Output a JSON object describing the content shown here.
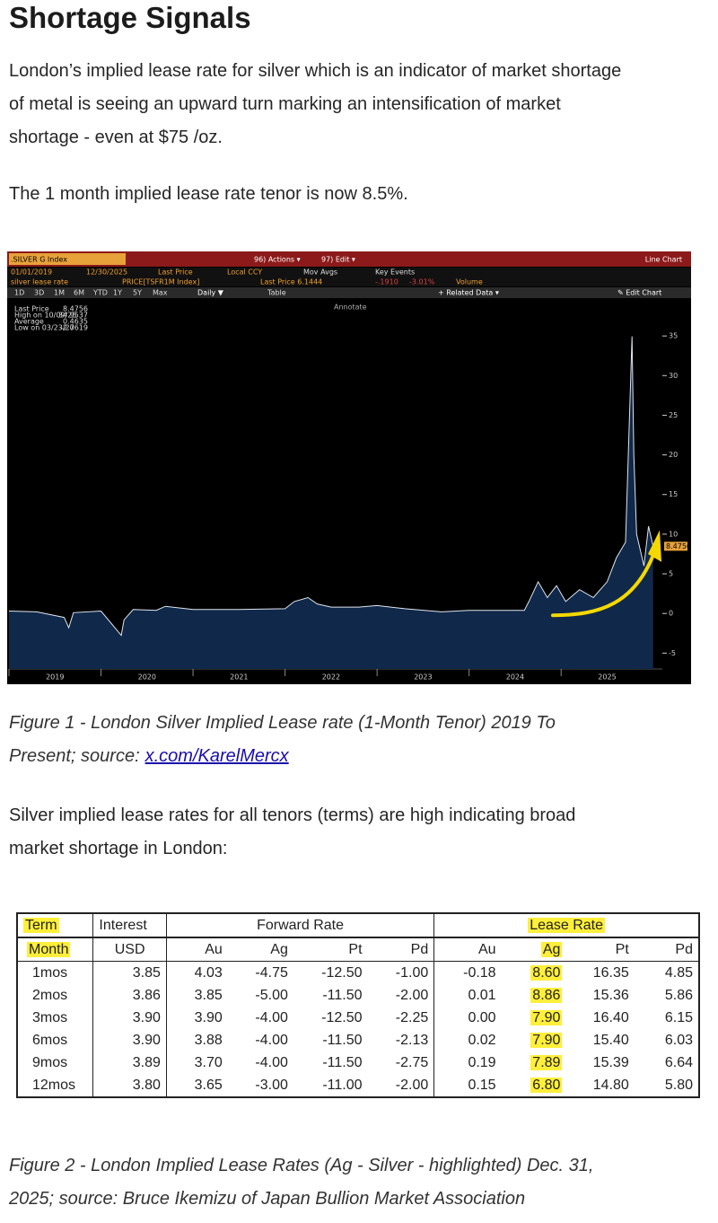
{
  "header": {
    "title": "Shortage Signals"
  },
  "paragraphs": [
    [
      "London’s implied lease rate for silver which is an indicator of market shortage",
      "of metal is seeing an upward turn marking an intensification of market",
      "shortage - even at $75 /oz."
    ],
    [
      "The 1 month implied lease rate tenor is now 8.5%."
    ]
  ],
  "figure1": {
    "chart_data": {
      "type": "line",
      "toolbar": {
        "ticker": ".SILVER G Index",
        "actions": "96) Actions ▾",
        "edit": "97) Edit ▾",
        "chart_kind": "Line Chart",
        "start_date": "01/01/2019",
        "end_date": "12/30/2025",
        "field": "Last Price",
        "currency": "Local CCY",
        "mov_avgs": "Mov Avgs",
        "key_events": "Key Events",
        "series_name": "silver lease rate",
        "formula": "PRICE[TSFR1M Index]",
        "last_price": "Last Price 6.1444",
        "change": "-.1910",
        "change_pct": "-3.01%",
        "volume": "Volume",
        "periods": [
          "1D",
          "3D",
          "1M",
          "6M",
          "YTD",
          "1Y",
          "5Y",
          "Max"
        ],
        "frequency": "Daily ▼",
        "table": "Table",
        "related": "+ Related Data ▾",
        "edit_chart": "✎ Edit Chart",
        "annotate": "Annotate"
      },
      "legend_rows": [
        [
          "Last Price",
          "8.4756"
        ],
        [
          "High on 10/09/25",
          "34.9537"
        ],
        [
          "Average",
          "0.4635"
        ],
        [
          "Low on 03/23/20",
          "-2.7619"
        ]
      ],
      "price_tag": "8.4756",
      "x": [
        2019.0,
        2019.3,
        2019.6,
        2019.65,
        2019.7,
        2020.0,
        2020.22,
        2020.25,
        2020.35,
        2020.6,
        2020.7,
        2021.0,
        2021.5,
        2022.0,
        2022.1,
        2022.25,
        2022.35,
        2022.5,
        2022.8,
        2023.0,
        2023.3,
        2023.7,
        2024.0,
        2024.4,
        2024.6,
        2024.65,
        2024.75,
        2024.85,
        2024.95,
        2025.05,
        2025.2,
        2025.35,
        2025.5,
        2025.6,
        2025.7,
        2025.77,
        2025.79,
        2025.82,
        2025.9,
        2025.95,
        2026.0
      ],
      "series": [
        {
          "color": "#dfe6ee",
          "values": [
            0.3,
            0.2,
            -0.5,
            -1.8,
            0.1,
            0.3,
            -2.7619,
            -0.8,
            0.5,
            0.4,
            0.9,
            0.5,
            0.5,
            0.6,
            1.5,
            2.0,
            1.2,
            0.8,
            0.8,
            1.0,
            0.6,
            0.2,
            0.4,
            0.4,
            0.4,
            1.5,
            4.0,
            2.0,
            3.5,
            1.5,
            3.0,
            2.0,
            4.0,
            7.0,
            9.0,
            34.9537,
            20.0,
            10.0,
            6.0,
            11.0,
            8.4756
          ]
        }
      ],
      "xlim": [
        2019,
        2026.1
      ],
      "ylim": [
        -7,
        40
      ],
      "xticks": [
        2019,
        2020,
        2021,
        2022,
        2023,
        2024,
        2025
      ],
      "yticks": [
        -5,
        0,
        5,
        10,
        15,
        20,
        25,
        30,
        35
      ]
    },
    "caption": [
      "Figure 1 - London Silver Implied Lease rate (1-Month Tenor) 2019 To",
      "Present; source:"
    ],
    "caption_link": "x.com/KarelMercx"
  },
  "paragraph3": [
    "Silver implied lease rates for all tenors (terms) are high indicating broad",
    "market shortage in London:"
  ],
  "table": {
    "group_header": [
      "Term",
      "Interest",
      "Forward Rate",
      "Lease Rate"
    ],
    "header": [
      "Month",
      "USD",
      "Au",
      "Ag",
      "Pt",
      "Pd",
      "Au",
      "Ag",
      "Pt",
      "Pd"
    ],
    "rows": [
      [
        "1mos",
        "3.85",
        "4.03",
        "-4.75",
        "-12.50",
        "-1.00",
        "-0.18",
        "8.60",
        "16.35",
        "4.85"
      ],
      [
        "2mos",
        "3.86",
        "3.85",
        "-5.00",
        "-11.50",
        "-2.00",
        "0.01",
        "8.86",
        "15.36",
        "5.86"
      ],
      [
        "3mos",
        "3.90",
        "3.90",
        "-4.00",
        "-12.50",
        "-2.25",
        "0.00",
        "7.90",
        "16.40",
        "6.15"
      ],
      [
        "6mos",
        "3.90",
        "3.88",
        "-4.00",
        "-11.50",
        "-2.13",
        "0.02",
        "7.90",
        "15.40",
        "6.03"
      ],
      [
        "9mos",
        "3.89",
        "3.70",
        "-4.00",
        "-11.50",
        "-2.75",
        "0.19",
        "7.89",
        "15.39",
        "6.64"
      ],
      [
        "12mos",
        "3.80",
        "3.65",
        "-3.00",
        "-11.00",
        "-2.00",
        "0.15",
        "6.80",
        "14.80",
        "5.80"
      ]
    ]
  },
  "figure2": {
    "caption": [
      "Figure 2 - London Implied Lease Rates (Ag - Silver - highlighted) Dec. 31,",
      "2025; source: Bruce Ikemizu of Japan Bullion Market Association"
    ]
  }
}
